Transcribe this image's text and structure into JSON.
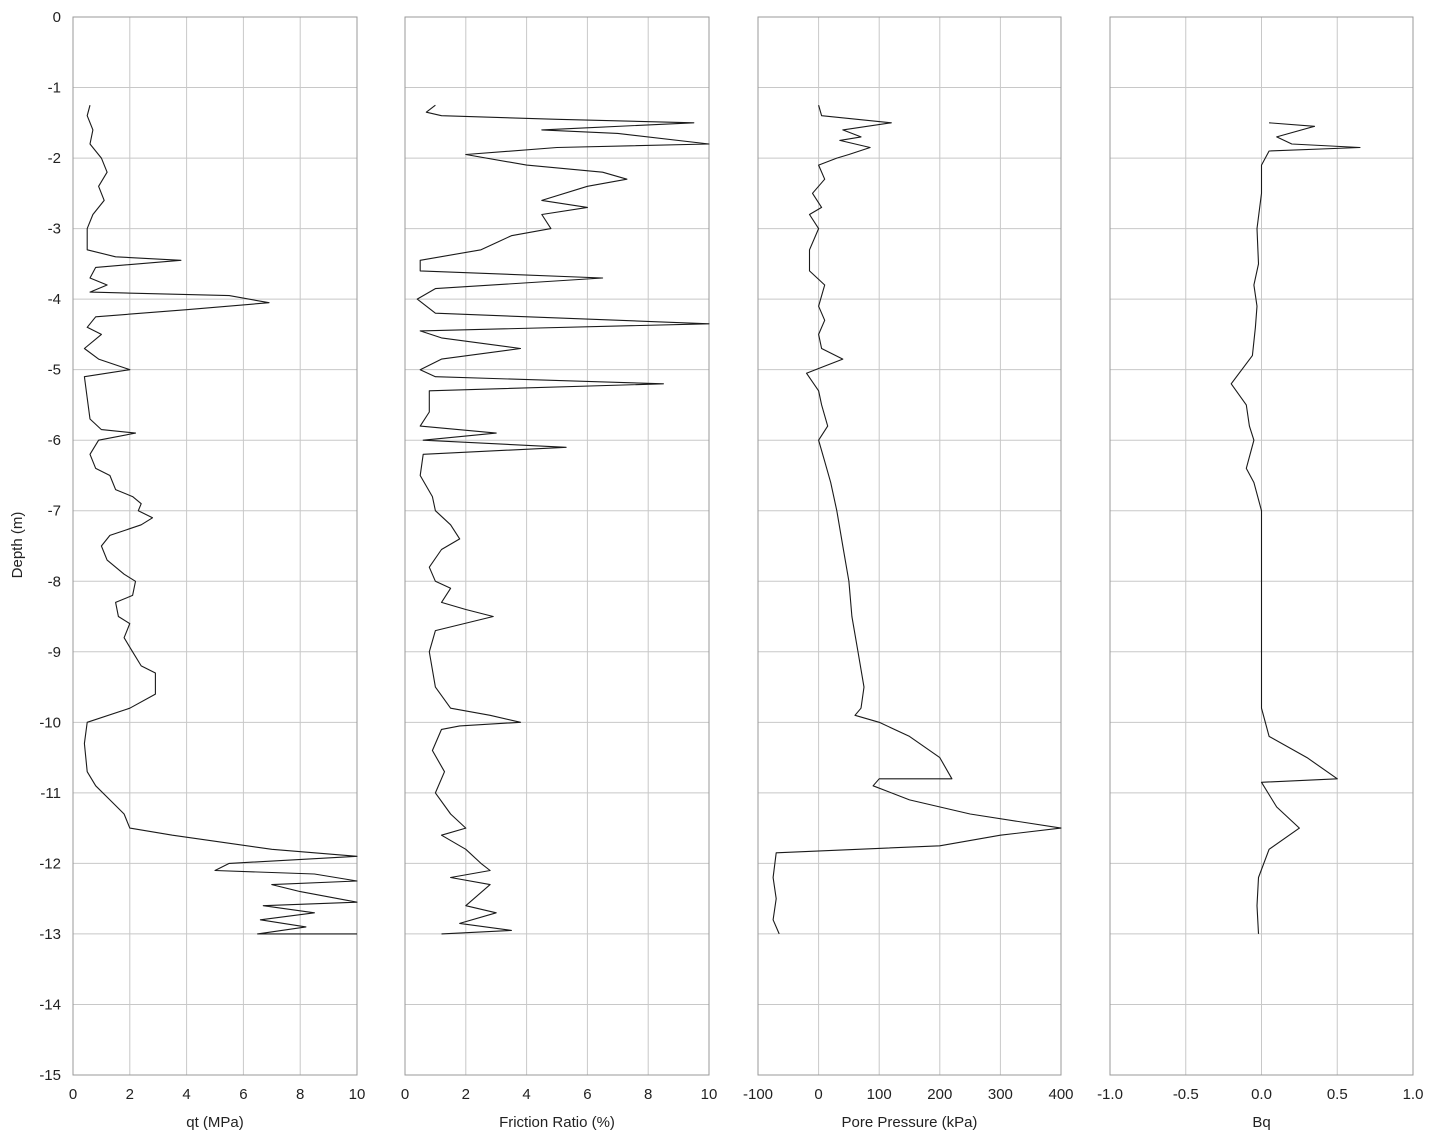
{
  "chart_data": [
    {
      "type": "line",
      "xlabel": "qt (MPa)",
      "ylabel": "Depth (m)",
      "xlim": [
        0,
        10
      ],
      "ylim": [
        -15,
        0
      ],
      "x_ticks": [
        "0",
        "2",
        "4",
        "6",
        "8",
        "10"
      ],
      "y_ticks": [
        "0",
        "-1",
        "-2",
        "-3",
        "-4",
        "-5",
        "-6",
        "-7",
        "-8",
        "-9",
        "-10",
        "-11",
        "-12",
        "-13",
        "-14",
        "-15"
      ],
      "grid": true,
      "series": [
        {
          "points": [
            [
              0.6,
              -1.25
            ],
            [
              0.5,
              -1.4
            ],
            [
              0.7,
              -1.6
            ],
            [
              0.6,
              -1.8
            ],
            [
              1.0,
              -2.0
            ],
            [
              1.2,
              -2.2
            ],
            [
              0.9,
              -2.4
            ],
            [
              1.1,
              -2.6
            ],
            [
              0.7,
              -2.8
            ],
            [
              0.5,
              -3.0
            ],
            [
              0.5,
              -3.3
            ],
            [
              1.5,
              -3.4
            ],
            [
              3.8,
              -3.45
            ],
            [
              0.8,
              -3.55
            ],
            [
              0.6,
              -3.7
            ],
            [
              1.2,
              -3.8
            ],
            [
              0.6,
              -3.9
            ],
            [
              5.5,
              -3.95
            ],
            [
              6.9,
              -4.05
            ],
            [
              4.0,
              -4.15
            ],
            [
              0.8,
              -4.25
            ],
            [
              0.5,
              -4.4
            ],
            [
              1.0,
              -4.5
            ],
            [
              0.4,
              -4.7
            ],
            [
              0.9,
              -4.85
            ],
            [
              2.0,
              -5.0
            ],
            [
              0.4,
              -5.1
            ],
            [
              0.5,
              -5.4
            ],
            [
              0.6,
              -5.7
            ],
            [
              1.0,
              -5.85
            ],
            [
              2.2,
              -5.9
            ],
            [
              0.9,
              -6.0
            ],
            [
              0.6,
              -6.2
            ],
            [
              0.8,
              -6.4
            ],
            [
              1.3,
              -6.5
            ],
            [
              1.5,
              -6.7
            ],
            [
              2.1,
              -6.8
            ],
            [
              2.4,
              -6.9
            ],
            [
              2.3,
              -7.0
            ],
            [
              2.8,
              -7.1
            ],
            [
              2.4,
              -7.2
            ],
            [
              1.3,
              -7.35
            ],
            [
              1.0,
              -7.5
            ],
            [
              1.2,
              -7.7
            ],
            [
              1.8,
              -7.9
            ],
            [
              2.2,
              -8.0
            ],
            [
              2.1,
              -8.2
            ],
            [
              1.5,
              -8.3
            ],
            [
              1.6,
              -8.5
            ],
            [
              2.0,
              -8.6
            ],
            [
              1.8,
              -8.8
            ],
            [
              2.1,
              -9.0
            ],
            [
              2.4,
              -9.2
            ],
            [
              2.9,
              -9.3
            ],
            [
              2.9,
              -9.6
            ],
            [
              2.0,
              -9.8
            ],
            [
              0.5,
              -10.0
            ],
            [
              0.4,
              -10.3
            ],
            [
              0.5,
              -10.7
            ],
            [
              0.8,
              -10.9
            ],
            [
              1.3,
              -11.1
            ],
            [
              1.8,
              -11.3
            ],
            [
              2.0,
              -11.5
            ],
            [
              3.5,
              -11.6
            ],
            [
              7.0,
              -11.8
            ],
            [
              10.0,
              -11.9
            ],
            [
              5.5,
              -12.0
            ],
            [
              5.0,
              -12.1
            ],
            [
              8.5,
              -12.15
            ],
            [
              10.0,
              -12.25
            ],
            [
              7.0,
              -12.3
            ],
            [
              8.0,
              -12.4
            ],
            [
              10.0,
              -12.55
            ],
            [
              6.7,
              -12.6
            ],
            [
              8.5,
              -12.7
            ],
            [
              6.6,
              -12.8
            ],
            [
              8.2,
              -12.9
            ],
            [
              6.5,
              -13.0
            ],
            [
              10.0,
              -13.0
            ]
          ]
        }
      ]
    },
    {
      "type": "line",
      "xlabel": "Friction Ratio (%)",
      "ylabel": "",
      "xlim": [
        0,
        10
      ],
      "ylim": [
        -15,
        0
      ],
      "x_ticks": [
        "0",
        "2",
        "4",
        "6",
        "8",
        "10"
      ],
      "grid": true,
      "series": [
        {
          "points": [
            [
              1.0,
              -1.25
            ],
            [
              0.7,
              -1.35
            ],
            [
              1.2,
              -1.4
            ],
            [
              5.0,
              -1.45
            ],
            [
              9.5,
              -1.5
            ],
            [
              4.5,
              -1.6
            ],
            [
              7.0,
              -1.65
            ],
            [
              10.0,
              -1.8
            ],
            [
              5.0,
              -1.85
            ],
            [
              2.0,
              -1.95
            ],
            [
              4.0,
              -2.1
            ],
            [
              6.5,
              -2.2
            ],
            [
              7.3,
              -2.3
            ],
            [
              6.0,
              -2.4
            ],
            [
              4.5,
              -2.6
            ],
            [
              6.0,
              -2.7
            ],
            [
              4.5,
              -2.8
            ],
            [
              4.8,
              -3.0
            ],
            [
              3.5,
              -3.1
            ],
            [
              3.0,
              -3.2
            ],
            [
              2.5,
              -3.3
            ],
            [
              0.5,
              -3.45
            ],
            [
              0.5,
              -3.6
            ],
            [
              6.5,
              -3.7
            ],
            [
              1.0,
              -3.85
            ],
            [
              0.4,
              -4.0
            ],
            [
              1.0,
              -4.2
            ],
            [
              10.0,
              -4.35
            ],
            [
              0.5,
              -4.45
            ],
            [
              1.2,
              -4.55
            ],
            [
              3.8,
              -4.7
            ],
            [
              1.2,
              -4.85
            ],
            [
              0.5,
              -5.0
            ],
            [
              1.0,
              -5.1
            ],
            [
              8.5,
              -5.2
            ],
            [
              0.8,
              -5.3
            ],
            [
              0.8,
              -5.6
            ],
            [
              0.5,
              -5.8
            ],
            [
              3.0,
              -5.9
            ],
            [
              0.6,
              -6.0
            ],
            [
              5.3,
              -6.1
            ],
            [
              0.6,
              -6.2
            ],
            [
              0.5,
              -6.5
            ],
            [
              0.9,
              -6.8
            ],
            [
              1.0,
              -7.0
            ],
            [
              1.5,
              -7.2
            ],
            [
              1.8,
              -7.4
            ],
            [
              1.2,
              -7.55
            ],
            [
              0.8,
              -7.8
            ],
            [
              1.0,
              -8.0
            ],
            [
              1.5,
              -8.1
            ],
            [
              1.2,
              -8.3
            ],
            [
              2.0,
              -8.4
            ],
            [
              2.9,
              -8.5
            ],
            [
              1.0,
              -8.7
            ],
            [
              0.8,
              -9.0
            ],
            [
              1.0,
              -9.5
            ],
            [
              1.5,
              -9.8
            ],
            [
              2.8,
              -9.9
            ],
            [
              3.8,
              -10.0
            ],
            [
              1.8,
              -10.05
            ],
            [
              1.2,
              -10.1
            ],
            [
              0.9,
              -10.4
            ],
            [
              1.3,
              -10.7
            ],
            [
              1.0,
              -11.0
            ],
            [
              1.5,
              -11.3
            ],
            [
              2.0,
              -11.5
            ],
            [
              1.2,
              -11.6
            ],
            [
              2.0,
              -11.8
            ],
            [
              2.5,
              -12.0
            ],
            [
              2.8,
              -12.1
            ],
            [
              1.5,
              -12.2
            ],
            [
              2.8,
              -12.3
            ],
            [
              2.0,
              -12.6
            ],
            [
              3.0,
              -12.7
            ],
            [
              1.8,
              -12.85
            ],
            [
              3.5,
              -12.95
            ],
            [
              1.2,
              -13.0
            ]
          ]
        }
      ]
    },
    {
      "type": "line",
      "xlabel": "Pore Pressure (kPa)",
      "ylabel": "",
      "xlim": [
        -100,
        400
      ],
      "ylim": [
        -15,
        0
      ],
      "x_ticks": [
        "-100",
        "0",
        "100",
        "200",
        "300",
        "400"
      ],
      "grid": true,
      "series": [
        {
          "points": [
            [
              0,
              -1.25
            ],
            [
              5,
              -1.4
            ],
            [
              120,
              -1.5
            ],
            [
              40,
              -1.6
            ],
            [
              70,
              -1.7
            ],
            [
              35,
              -1.75
            ],
            [
              85,
              -1.85
            ],
            [
              50,
              -1.95
            ],
            [
              30,
              -2.0
            ],
            [
              0,
              -2.1
            ],
            [
              10,
              -2.3
            ],
            [
              -10,
              -2.5
            ],
            [
              5,
              -2.7
            ],
            [
              -15,
              -2.8
            ],
            [
              0,
              -3.0
            ],
            [
              -15,
              -3.3
            ],
            [
              -15,
              -3.6
            ],
            [
              10,
              -3.8
            ],
            [
              0,
              -4.1
            ],
            [
              10,
              -4.3
            ],
            [
              0,
              -4.5
            ],
            [
              5,
              -4.7
            ],
            [
              40,
              -4.85
            ],
            [
              10,
              -4.95
            ],
            [
              -20,
              -5.05
            ],
            [
              0,
              -5.3
            ],
            [
              5,
              -5.5
            ],
            [
              15,
              -5.8
            ],
            [
              0,
              -6.0
            ],
            [
              10,
              -6.3
            ],
            [
              20,
              -6.6
            ],
            [
              30,
              -7.0
            ],
            [
              40,
              -7.5
            ],
            [
              50,
              -8.0
            ],
            [
              55,
              -8.5
            ],
            [
              65,
              -9.0
            ],
            [
              75,
              -9.5
            ],
            [
              70,
              -9.8
            ],
            [
              60,
              -9.9
            ],
            [
              100,
              -10.0
            ],
            [
              150,
              -10.2
            ],
            [
              200,
              -10.5
            ],
            [
              220,
              -10.8
            ],
            [
              100,
              -10.8
            ],
            [
              90,
              -10.9
            ],
            [
              150,
              -11.1
            ],
            [
              250,
              -11.3
            ],
            [
              400,
              -11.5
            ],
            [
              300,
              -11.6
            ],
            [
              200,
              -11.75
            ],
            [
              -70,
              -11.85
            ],
            [
              -75,
              -12.2
            ],
            [
              -70,
              -12.5
            ],
            [
              -75,
              -12.8
            ],
            [
              -65,
              -13.0
            ]
          ]
        }
      ]
    },
    {
      "type": "line",
      "xlabel": "Bq",
      "ylabel": "",
      "xlim": [
        -1.0,
        1.0
      ],
      "ylim": [
        -15,
        0
      ],
      "x_ticks": [
        "-1.0",
        "-0.5",
        "0.0",
        "0.5",
        "1.0"
      ],
      "grid": true,
      "series": [
        {
          "points": [
            [
              0.05,
              -1.5
            ],
            [
              0.35,
              -1.55
            ],
            [
              0.1,
              -1.7
            ],
            [
              0.2,
              -1.8
            ],
            [
              0.65,
              -1.85
            ],
            [
              0.05,
              -1.9
            ],
            [
              0.0,
              -2.1
            ],
            [
              0.0,
              -2.5
            ],
            [
              -0.03,
              -3.0
            ],
            [
              -0.02,
              -3.5
            ],
            [
              -0.05,
              -3.8
            ],
            [
              -0.03,
              -4.1
            ],
            [
              -0.04,
              -4.4
            ],
            [
              -0.06,
              -4.8
            ],
            [
              -0.2,
              -5.2
            ],
            [
              -0.1,
              -5.5
            ],
            [
              -0.08,
              -5.8
            ],
            [
              -0.05,
              -6.0
            ],
            [
              -0.1,
              -6.4
            ],
            [
              -0.05,
              -6.6
            ],
            [
              0.0,
              -7.0
            ],
            [
              0.0,
              -8.0
            ],
            [
              0.0,
              -9.0
            ],
            [
              0.0,
              -9.8
            ],
            [
              0.05,
              -10.2
            ],
            [
              0.3,
              -10.5
            ],
            [
              0.5,
              -10.8
            ],
            [
              0.0,
              -10.85
            ],
            [
              0.1,
              -11.2
            ],
            [
              0.25,
              -11.5
            ],
            [
              0.05,
              -11.8
            ],
            [
              -0.02,
              -12.2
            ],
            [
              -0.03,
              -12.6
            ],
            [
              -0.02,
              -13.0
            ]
          ]
        }
      ]
    }
  ]
}
